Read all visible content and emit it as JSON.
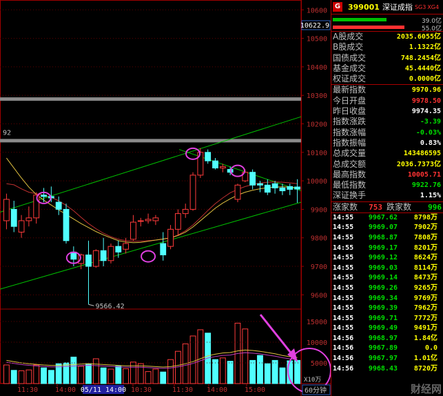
{
  "stock": {
    "badge": "G",
    "code": "399001",
    "name": "深证成指",
    "tag1": "SG3",
    "tag2": "XG4"
  },
  "flow_bars": [
    {
      "value": "39.0亿",
      "color": "#00c000",
      "fill": 0.62
    },
    {
      "value": "55.0亿",
      "color": "#ff3030",
      "fill": 0.83
    }
  ],
  "stats1": [
    {
      "label": "A股成交",
      "value": "2035.6055亿",
      "color": "yellow"
    },
    {
      "label": "B股成交",
      "value": "1.1322亿",
      "color": "yellow"
    },
    {
      "label": "国债成交",
      "value": "748.2454亿",
      "color": "yellow"
    },
    {
      "label": "基金成交",
      "value": "45.4440亿",
      "color": "yellow"
    },
    {
      "label": "权证成交",
      "value": "0.0000亿",
      "color": "yellow"
    }
  ],
  "stats2": [
    {
      "label": "最新指数",
      "value": "9970.96",
      "color": "yellow"
    },
    {
      "label": "今日开盘",
      "value": "9978.50",
      "color": "red"
    },
    {
      "label": "昨日收盘",
      "value": "9974.35",
      "color": "white"
    },
    {
      "label": "指数涨跌",
      "value": "-3.39",
      "color": "green"
    },
    {
      "label": "指数涨幅",
      "value": "-0.03%",
      "color": "green"
    },
    {
      "label": "指数振幅",
      "value": "0.83%",
      "color": "white"
    },
    {
      "label": "总成交量",
      "value": "143486595",
      "color": "yellow"
    },
    {
      "label": "总成交额",
      "value": "2036.7373亿",
      "color": "yellow"
    },
    {
      "label": "最高指数",
      "value": "10005.71",
      "color": "red"
    },
    {
      "label": "最低指数",
      "value": "9922.76",
      "color": "green"
    },
    {
      "label": "深证换手",
      "value": "1.15%",
      "color": "white"
    }
  ],
  "counts": {
    "up_label": "涨家数",
    "up": "753",
    "down_label": "跌家数",
    "down": "996"
  },
  "trades": [
    {
      "t": "14:55",
      "p": "9967.62",
      "q": "8798万",
      "pc": "green"
    },
    {
      "t": "14:55",
      "p": "9969.07",
      "q": "7902万",
      "pc": "green"
    },
    {
      "t": "14:55",
      "p": "9968.87",
      "q": "7808万",
      "pc": "green"
    },
    {
      "t": "14:55",
      "p": "9969.17",
      "q": "8201万",
      "pc": "green"
    },
    {
      "t": "14:55",
      "p": "9969.12",
      "q": "8624万",
      "pc": "green"
    },
    {
      "t": "14:55",
      "p": "9969.03",
      "q": "8114万",
      "pc": "green"
    },
    {
      "t": "14:55",
      "p": "9969.14",
      "q": "8473万",
      "pc": "green"
    },
    {
      "t": "14:55",
      "p": "9969.26",
      "q": "9265万",
      "pc": "green"
    },
    {
      "t": "14:55",
      "p": "9969.34",
      "q": "9769万",
      "pc": "green"
    },
    {
      "t": "14:55",
      "p": "9969.39",
      "q": "7962万",
      "pc": "green"
    },
    {
      "t": "14:55",
      "p": "9969.71",
      "q": "7772万",
      "pc": "green"
    },
    {
      "t": "14:55",
      "p": "9969.49",
      "q": "9491万",
      "pc": "green"
    },
    {
      "t": "14:56",
      "p": "9968.97",
      "q": "1.84亿",
      "pc": "green"
    },
    {
      "t": "14:56",
      "p": "9967.89",
      "q": "0.0",
      "pc": "green"
    },
    {
      "t": "14:56",
      "p": "9967.97",
      "q": "1.01亿",
      "pc": "green"
    },
    {
      "t": "14:56",
      "p": "9968.43",
      "q": "8720万",
      "pc": "green"
    }
  ],
  "chart": {
    "price_top_label": "10622.9",
    "price_ticks": [
      "10600",
      "10500",
      "10400",
      "10300",
      "10200",
      "10100",
      "10000",
      "9900",
      "9800",
      "9700",
      "9600"
    ],
    "low_label": "9566.42",
    "left_marker": "92",
    "vol_ticks": [
      "15000",
      "10000",
      "5000"
    ],
    "vol_unit": "X10万",
    "period": "60分钟",
    "time_labels": [
      "11:30",
      "14:00",
      "05/11 14:00",
      "10:30",
      "11:30",
      "14:00",
      "15:00"
    ],
    "watermark": "财经网"
  },
  "chart_data": {
    "type": "candlestick",
    "candles": [
      {
        "o": 9860,
        "h": 9955,
        "l": 9830,
        "c": 9935
      },
      {
        "o": 9900,
        "h": 9930,
        "l": 9820,
        "c": 9840
      },
      {
        "o": 9820,
        "h": 9880,
        "l": 9800,
        "c": 9860
      },
      {
        "o": 9860,
        "h": 9910,
        "l": 9840,
        "c": 9870
      },
      {
        "o": 9870,
        "h": 9960,
        "l": 9850,
        "c": 9950
      },
      {
        "o": 9950,
        "h": 9975,
        "l": 9925,
        "c": 9945
      },
      {
        "o": 9945,
        "h": 9980,
        "l": 9925,
        "c": 9940
      },
      {
        "o": 9925,
        "h": 9945,
        "l": 9880,
        "c": 9900
      },
      {
        "o": 9900,
        "h": 9920,
        "l": 9780,
        "c": 9790
      },
      {
        "o": 9750,
        "h": 9770,
        "l": 9700,
        "c": 9725
      },
      {
        "o": 9710,
        "h": 9745,
        "l": 9690,
        "c": 9740
      },
      {
        "o": 9740,
        "h": 9790,
        "l": 9566.42,
        "c": 9700
      },
      {
        "o": 9700,
        "h": 9760,
        "l": 9695,
        "c": 9755
      },
      {
        "o": 9755,
        "h": 9800,
        "l": 9700,
        "c": 9720
      },
      {
        "o": 9720,
        "h": 9780,
        "l": 9710,
        "c": 9770
      },
      {
        "o": 9770,
        "h": 9790,
        "l": 9730,
        "c": 9750
      },
      {
        "o": 9760,
        "h": 9800,
        "l": 9745,
        "c": 9780
      },
      {
        "o": 9795,
        "h": 9880,
        "l": 9790,
        "c": 9855
      },
      {
        "o": 9860,
        "h": 9870,
        "l": 9840,
        "c": 9860
      },
      {
        "o": 9860,
        "h": 9885,
        "l": 9850,
        "c": 9865
      },
      {
        "o": 9860,
        "h": 9880,
        "l": 9845,
        "c": 9870
      },
      {
        "o": 9780,
        "h": 9820,
        "l": 9720,
        "c": 9740
      },
      {
        "o": 9770,
        "h": 9845,
        "l": 9760,
        "c": 9830
      },
      {
        "o": 9830,
        "h": 9900,
        "l": 9810,
        "c": 9885
      },
      {
        "o": 9885,
        "h": 9920,
        "l": 9870,
        "c": 9900
      },
      {
        "o": 9900,
        "h": 10030,
        "l": 9895,
        "c": 10020
      },
      {
        "o": 10020,
        "h": 10115,
        "l": 10010,
        "c": 10100
      },
      {
        "o": 10100,
        "h": 10110,
        "l": 10060,
        "c": 10070
      },
      {
        "o": 10070,
        "h": 10080,
        "l": 10040,
        "c": 10045
      },
      {
        "o": 10045,
        "h": 10060,
        "l": 10030,
        "c": 10050
      },
      {
        "o": 10040,
        "h": 10050,
        "l": 10020,
        "c": 10030
      },
      {
        "o": 9935,
        "h": 9990,
        "l": 9925,
        "c": 9985
      },
      {
        "o": 10000,
        "h": 10040,
        "l": 9995,
        "c": 10030
      },
      {
        "o": 10030,
        "h": 10040,
        "l": 9970,
        "c": 9985
      },
      {
        "o": 9990,
        "h": 10000,
        "l": 9960,
        "c": 9985
      },
      {
        "o": 9985,
        "h": 10005,
        "l": 9950,
        "c": 9960
      },
      {
        "o": 9990,
        "h": 10000,
        "l": 9955,
        "c": 9975
      },
      {
        "o": 9975,
        "h": 9990,
        "l": 9950,
        "c": 9965
      },
      {
        "o": 9980,
        "h": 9990,
        "l": 9950,
        "c": 9970
      },
      {
        "o": 9978.5,
        "h": 10005.71,
        "l": 9922.76,
        "c": 9970.96
      }
    ],
    "ma_yellow": [
      10080,
      10045,
      10010,
      9978,
      9952,
      9932,
      9915,
      9898,
      9882,
      9866,
      9850,
      9836,
      9822,
      9810,
      9800,
      9790,
      9785,
      9783,
      9784,
      9788,
      9792,
      9796,
      9800,
      9808,
      9820,
      9838,
      9860,
      9882,
      9904,
      9922,
      9937,
      9950,
      9960,
      9967,
      9972,
      9976,
      9978,
      9979,
      9978,
      9976
    ],
    "ma_red": [
      9990,
      9986,
      9972,
      9960,
      9955,
      9950,
      9942,
      9930,
      9914,
      9895,
      9872,
      9850,
      9832,
      9816,
      9804,
      9795,
      9790,
      9788,
      9788,
      9790,
      9792,
      9795,
      9800,
      9810,
      9825,
      9845,
      9870,
      9896,
      9920,
      9940,
      9958,
      9970,
      9980,
      9987,
      9992,
      9995,
      9996,
      9995,
      9993,
      9990
    ],
    "volume": [
      4500,
      3200,
      3100,
      3300,
      4500,
      3800,
      3200,
      4800,
      5000,
      6400,
      4200,
      4800,
      6000,
      3800,
      3500,
      4200,
      3600,
      5200,
      4800,
      2900,
      3500,
      2800,
      5800,
      7800,
      9600,
      11500,
      13000,
      12200,
      5800,
      6200,
      5400,
      14600,
      13200,
      5600,
      6800,
      4800,
      5600,
      3800,
      5500,
      5600
    ],
    "vol_ma": [
      5600,
      5300,
      5000,
      4800,
      4650,
      4500,
      4400,
      4400,
      4500,
      4600,
      4700,
      4800,
      4700,
      4600,
      4500,
      4400,
      4300,
      4300,
      4300,
      4200,
      4100,
      4000,
      4100,
      4400,
      4800,
      5300,
      6000,
      6700,
      7100,
      7400,
      7500,
      7900,
      8100,
      8000,
      7800,
      7500,
      7200,
      6800,
      6500,
      6300
    ],
    "ylim": [
      9550,
      10620
    ],
    "vol_ylim": [
      0,
      17000
    ],
    "xlabel": "",
    "ylabel": ""
  }
}
